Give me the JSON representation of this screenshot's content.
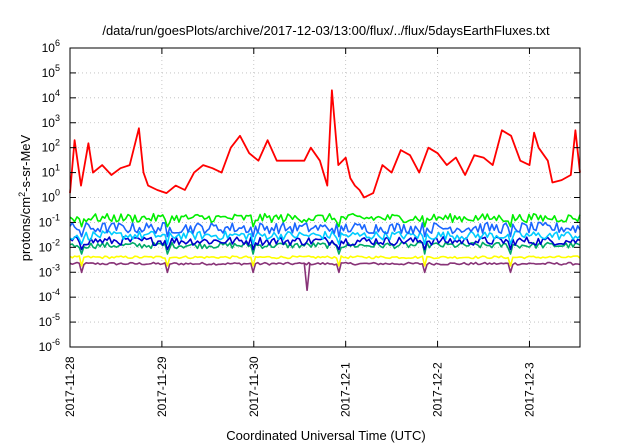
{
  "chart_data": {
    "type": "line",
    "title": "/data/run/goesPlots/archive/2017-12-03/13:00/flux/../flux/5daysEarthFluxes.txt",
    "xlabel": "Coordinated Universal Time (UTC)",
    "ylabel_base": "protons/cm",
    "ylabel_sup": "2",
    "ylabel_rest": "-s-sr-MeV",
    "yscale": "log",
    "ylim": [
      1e-06,
      1000000.0
    ],
    "y_ticks": [
      {
        "exp": "-6"
      },
      {
        "exp": "-5"
      },
      {
        "exp": "-4"
      },
      {
        "exp": "-3"
      },
      {
        "exp": "-2"
      },
      {
        "exp": "-1"
      },
      {
        "exp": "0"
      },
      {
        "exp": "1"
      },
      {
        "exp": "2"
      },
      {
        "exp": "3"
      },
      {
        "exp": "4"
      },
      {
        "exp": "5"
      },
      {
        "exp": "6"
      }
    ],
    "y_tick_base": "10",
    "x_ticks": [
      "2017-11-28",
      "2017-11-29",
      "2017-11-30",
      "2017-12-1",
      "2017-12-2",
      "2017-12-3"
    ],
    "xlim_days": [
      0,
      5.55
    ],
    "grid": true,
    "series": [
      {
        "color": "#ff0000",
        "anchors": [
          [
            0.0,
            1.5
          ],
          [
            0.05,
            200
          ],
          [
            0.12,
            3
          ],
          [
            0.2,
            150
          ],
          [
            0.25,
            10
          ],
          [
            0.35,
            20
          ],
          [
            0.45,
            8
          ],
          [
            0.55,
            15
          ],
          [
            0.65,
            20
          ],
          [
            0.75,
            600
          ],
          [
            0.8,
            10
          ],
          [
            0.85,
            3
          ],
          [
            0.95,
            2
          ],
          [
            1.05,
            1.5
          ],
          [
            1.15,
            3
          ],
          [
            1.25,
            2
          ],
          [
            1.35,
            10
          ],
          [
            1.45,
            20
          ],
          [
            1.55,
            15
          ],
          [
            1.65,
            10
          ],
          [
            1.75,
            100
          ],
          [
            1.85,
            300
          ],
          [
            1.95,
            60
          ],
          [
            2.05,
            30
          ],
          [
            2.15,
            200
          ],
          [
            2.25,
            30
          ],
          [
            2.35,
            30
          ],
          [
            2.45,
            30
          ],
          [
            2.55,
            30
          ],
          [
            2.62,
            100
          ],
          [
            2.72,
            30
          ],
          [
            2.8,
            3
          ],
          [
            2.85,
            20000
          ],
          [
            2.92,
            20
          ],
          [
            3.0,
            40
          ],
          [
            3.05,
            6
          ],
          [
            3.1,
            3
          ],
          [
            3.15,
            2
          ],
          [
            3.2,
            1
          ],
          [
            3.3,
            1.5
          ],
          [
            3.4,
            20
          ],
          [
            3.5,
            10
          ],
          [
            3.6,
            80
          ],
          [
            3.7,
            50
          ],
          [
            3.8,
            10
          ],
          [
            3.9,
            100
          ],
          [
            4.0,
            60
          ],
          [
            4.1,
            20
          ],
          [
            4.2,
            40
          ],
          [
            4.3,
            8
          ],
          [
            4.4,
            50
          ],
          [
            4.5,
            40
          ],
          [
            4.6,
            20
          ],
          [
            4.7,
            500
          ],
          [
            4.8,
            300
          ],
          [
            4.9,
            30
          ],
          [
            5.0,
            20
          ],
          [
            5.05,
            400
          ],
          [
            5.1,
            100
          ],
          [
            5.2,
            30
          ],
          [
            5.25,
            4
          ],
          [
            5.35,
            5
          ],
          [
            5.45,
            8
          ],
          [
            5.5,
            500
          ],
          [
            5.55,
            10
          ]
        ]
      },
      {
        "color": "#00ee00",
        "level": 0.15,
        "spread": 0.35
      },
      {
        "color": "#1a66ff",
        "level": 0.06,
        "spread": 0.45
      },
      {
        "color": "#00ccff",
        "level": 0.03,
        "spread": 0.35
      },
      {
        "color": "#0000cc",
        "level": 0.018,
        "spread": 0.35
      },
      {
        "color": "#00aa66",
        "level": 0.012,
        "spread": 0.25
      },
      {
        "color": "#ffff00",
        "level": 0.004,
        "spread": 0.1
      },
      {
        "color": "#883377",
        "level": 0.0022,
        "spread": 0.1
      }
    ]
  }
}
